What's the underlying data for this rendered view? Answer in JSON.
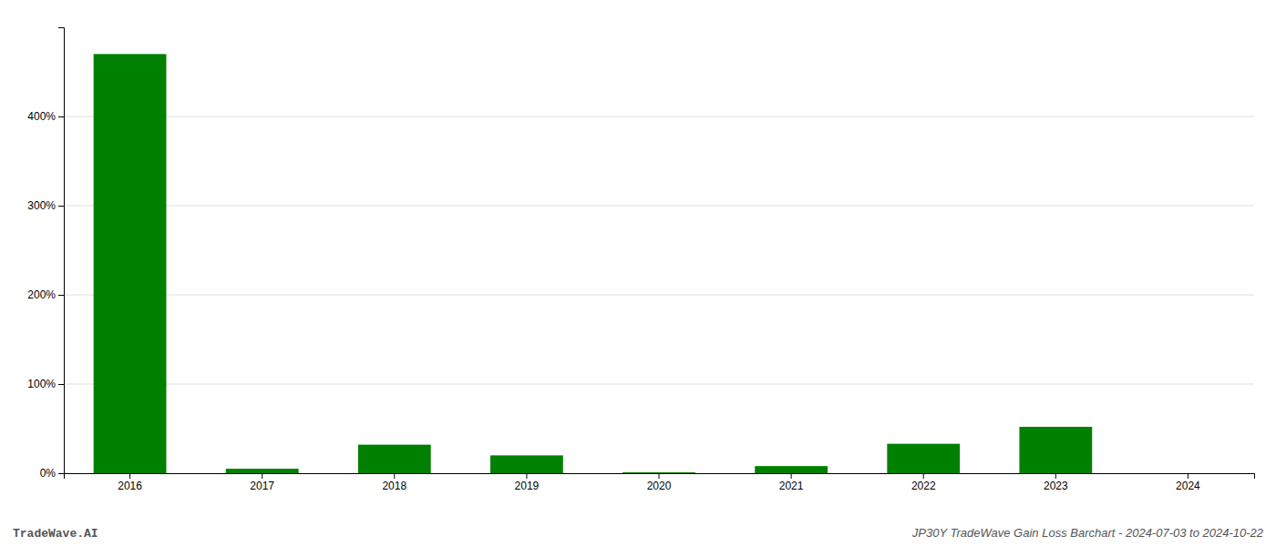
{
  "chart_data": {
    "type": "bar",
    "categories": [
      "2016",
      "2017",
      "2018",
      "2019",
      "2020",
      "2021",
      "2022",
      "2023",
      "2024"
    ],
    "values": [
      470,
      5,
      32,
      20,
      1,
      8,
      33,
      52,
      0
    ],
    "color": "#008000",
    "ylim": [
      0,
      500
    ],
    "yticks": [
      {
        "value": 0,
        "label": "0%"
      },
      {
        "value": 100,
        "label": "100%"
      },
      {
        "value": 200,
        "label": "200%"
      },
      {
        "value": 300,
        "label": "300%"
      },
      {
        "value": 400,
        "label": "400%"
      }
    ],
    "grid": true,
    "annotations": [
      "TradeWave.AI",
      "JP30Y TradeWave Gain Loss Barchart - 2024-07-03 to 2024-10-22"
    ]
  }
}
